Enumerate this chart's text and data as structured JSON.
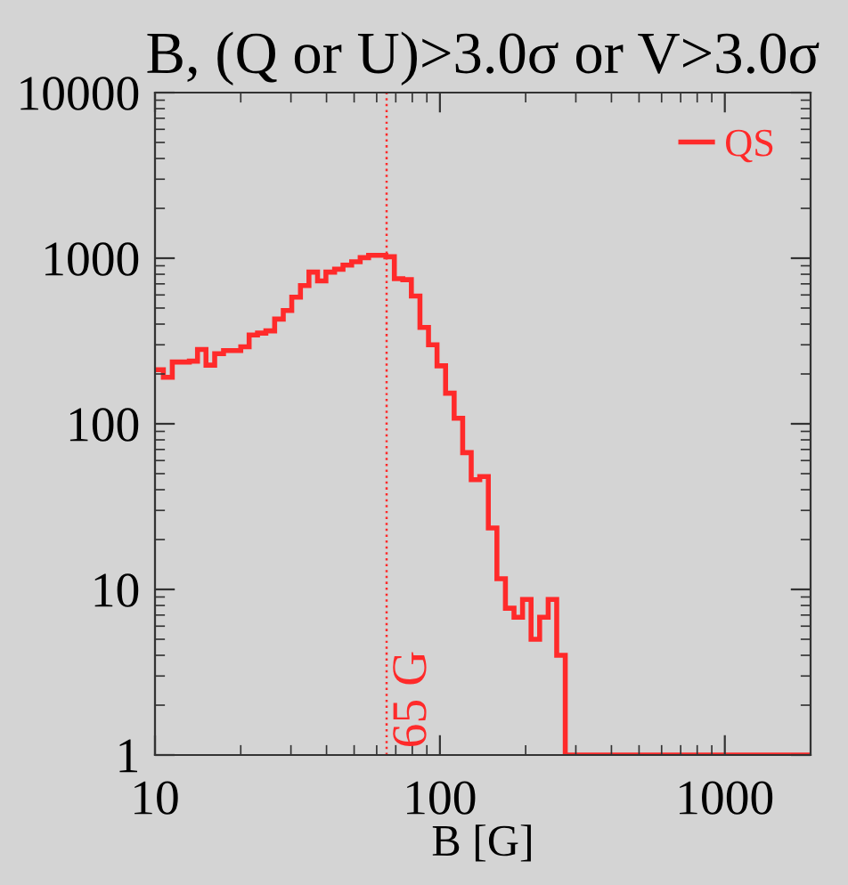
{
  "chart_data": {
    "type": "histogram",
    "title": "B, (Q or U)>3.0σ or V>3.0σ",
    "xlabel": "B [G]",
    "bins": [
      10.0,
      10.7,
      11.5,
      12.3,
      13.2,
      14.1,
      15.1,
      16.2,
      17.4,
      18.6,
      20.0,
      21.4,
      22.9,
      24.5,
      26.3,
      28.2,
      30.2,
      32.4,
      34.7,
      37.2,
      39.8,
      42.7,
      45.7,
      49.0,
      52.5,
      56.2,
      60.3,
      64.6,
      69.2,
      74.1,
      79.4,
      85.1,
      91.2,
      97.7,
      104.7,
      112.2,
      120.2,
      128.8,
      138.0,
      147.9,
      158.5,
      169.8,
      182.0,
      195.0,
      208.9,
      223.9,
      239.9,
      257.0,
      275.4,
      2000
    ],
    "series": [
      {
        "name": "QS",
        "color": "#ff2a2a",
        "values": [
          212,
          191,
          236,
          236,
          239,
          281,
          226,
          265,
          277,
          277,
          292,
          344,
          353,
          364,
          429,
          483,
          582,
          684,
          824,
          730,
          824,
          858,
          908,
          952,
          1008,
          1041,
          1041,
          1020,
          753,
          742,
          591,
          382,
          300,
          224,
          153,
          108,
          67,
          46,
          48,
          23.5,
          11.6,
          7.7,
          6.8,
          8.7,
          5.0,
          6.8,
          8.7,
          4.0,
          1
        ]
      }
    ],
    "log": "xy",
    "xlim": [
      10,
      2000
    ],
    "ylim": [
      1,
      10000
    ],
    "xticks": [
      10,
      100,
      1000
    ],
    "yticks": [
      1,
      10,
      100,
      1000,
      10000
    ],
    "ref_lines": [
      {
        "axis": "x",
        "value": 65,
        "label": "65 G",
        "color": "#ff2a2a",
        "line_style": "dotted"
      }
    ],
    "legend": "top right",
    "grid": false
  }
}
